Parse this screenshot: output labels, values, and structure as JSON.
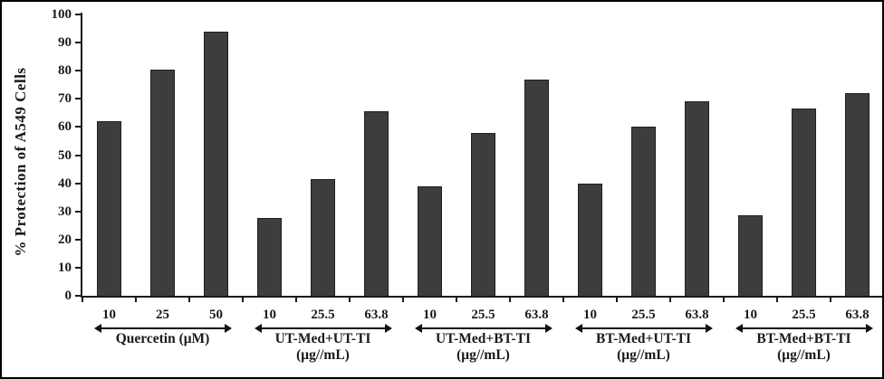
{
  "chart_data": {
    "type": "bar",
    "title": "",
    "ylabel": "% Protection of A549 Cells",
    "xlabel": "",
    "ylim": [
      0,
      100
    ],
    "ytick_step": 10,
    "yticks": [
      0,
      10,
      20,
      30,
      40,
      50,
      60,
      70,
      80,
      90,
      100
    ],
    "grid": false,
    "legend": false,
    "bar_color": "#3d3d3d",
    "axis_color": "#1a1a1a",
    "groups": [
      {
        "name_line1": "Quercetin (μM)",
        "name_line2": "",
        "categories": [
          "10",
          "25",
          "50"
        ],
        "values": [
          62,
          80.5,
          94
        ]
      },
      {
        "name_line1": "UT-Med+UT-TI",
        "name_line2": "(μg//mL)",
        "categories": [
          "10",
          "25.5",
          "63.8"
        ],
        "values": [
          27.5,
          41.5,
          65.5
        ]
      },
      {
        "name_line1": "UT-Med+BT-TI",
        "name_line2": "(μg//mL)",
        "categories": [
          "10",
          "25.5",
          "63.8"
        ],
        "values": [
          39,
          58,
          77
        ]
      },
      {
        "name_line1": "BT-Med+UT-TI",
        "name_line2": "(μg//mL)",
        "categories": [
          "10",
          "25.5",
          "63.8"
        ],
        "values": [
          40,
          60,
          69
        ]
      },
      {
        "name_line1": "BT-Med+BT-TI",
        "name_line2": "(μg//mL)",
        "categories": [
          "10",
          "25.5",
          "63.8"
        ],
        "values": [
          28.5,
          66.5,
          72
        ]
      }
    ]
  }
}
